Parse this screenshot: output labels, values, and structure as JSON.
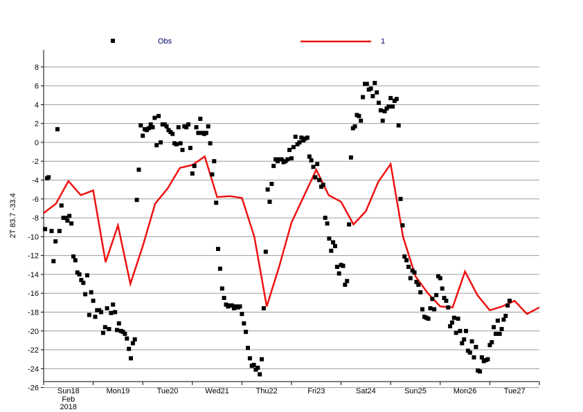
{
  "chart_data": {
    "type": "scatter+line",
    "ylabel": "2T 83.7 -33.4",
    "ylim": [
      -27,
      8.5
    ],
    "yticks": [
      -26,
      -24,
      -22,
      -20,
      -18,
      -16,
      -14,
      -12,
      -10,
      -8,
      -6,
      -4,
      -2,
      0,
      2,
      4,
      6,
      8
    ],
    "xlim": [
      0,
      10
    ],
    "grid": "horizontal",
    "legend_placement": "top",
    "x_ticks": [
      {
        "label": "Sun18",
        "x": 0.5,
        "color": "#cc0000",
        "sub": [
          "Feb",
          "2018"
        ]
      },
      {
        "label": "Mon19",
        "x": 1.5,
        "color": "#000000"
      },
      {
        "label": "Tue20",
        "x": 2.5,
        "color": "#000000"
      },
      {
        "label": "Wed21",
        "x": 3.5,
        "color": "#000000"
      },
      {
        "label": "Thu22",
        "x": 4.5,
        "color": "#000000"
      },
      {
        "label": "Fri23",
        "x": 5.5,
        "color": "#000000"
      },
      {
        "label": "Sat24",
        "x": 6.5,
        "color": "#000000"
      },
      {
        "label": "Sun25",
        "x": 7.5,
        "color": "#cc0000"
      },
      {
        "label": "Mon26",
        "x": 8.5,
        "color": "#000000"
      },
      {
        "label": "Tue27",
        "x": 9.5,
        "color": "#000000"
      }
    ],
    "series": [
      {
        "name": "Obs",
        "kind": "scatter",
        "color": "#000000",
        "label_color": "#000066",
        "points": [
          [
            0.03,
            -9.2
          ],
          [
            0.07,
            -3.8
          ],
          [
            0.1,
            -3.7
          ],
          [
            0.16,
            -9.4
          ],
          [
            0.2,
            -12.6
          ],
          [
            0.24,
            -10.5
          ],
          [
            0.28,
            1.4
          ],
          [
            0.32,
            -9.4
          ],
          [
            0.36,
            -6.7
          ],
          [
            0.4,
            -8.0
          ],
          [
            0.44,
            -8.0
          ],
          [
            0.48,
            -8.3
          ],
          [
            0.52,
            -7.8
          ],
          [
            0.56,
            -8.6
          ],
          [
            0.6,
            -12.1
          ],
          [
            0.64,
            -12.5
          ],
          [
            0.68,
            -13.8
          ],
          [
            0.72,
            -14.0
          ],
          [
            0.76,
            -14.6
          ],
          [
            0.8,
            -14.9
          ],
          [
            0.84,
            -16.1
          ],
          [
            0.88,
            -14.1
          ],
          [
            0.92,
            -18.3
          ],
          [
            0.96,
            -15.9
          ],
          [
            1.0,
            -16.8
          ],
          [
            1.04,
            -18.5
          ],
          [
            1.08,
            -17.8
          ],
          [
            1.12,
            -17.8
          ],
          [
            1.16,
            -18.0
          ],
          [
            1.2,
            -20.2
          ],
          [
            1.24,
            -19.6
          ],
          [
            1.28,
            -17.6
          ],
          [
            1.32,
            -19.8
          ],
          [
            1.36,
            -18.1
          ],
          [
            1.4,
            -17.2
          ],
          [
            1.44,
            -18.0
          ],
          [
            1.48,
            -19.9
          ],
          [
            1.52,
            -19.2
          ],
          [
            1.56,
            -20.0
          ],
          [
            1.6,
            -20.1
          ],
          [
            1.64,
            -20.3
          ],
          [
            1.68,
            -20.8
          ],
          [
            1.72,
            -21.9
          ],
          [
            1.76,
            -22.9
          ],
          [
            1.8,
            -21.3
          ],
          [
            1.84,
            -20.9
          ],
          [
            1.88,
            -6.1
          ],
          [
            1.92,
            -2.9
          ],
          [
            1.96,
            1.8
          ],
          [
            2.0,
            0.7
          ],
          [
            2.04,
            1.4
          ],
          [
            2.08,
            1.3
          ],
          [
            2.12,
            1.5
          ],
          [
            2.16,
            1.9
          ],
          [
            2.2,
            1.6
          ],
          [
            2.24,
            2.6
          ],
          [
            2.28,
            -0.3
          ],
          [
            2.32,
            2.8
          ],
          [
            2.36,
            0.0
          ],
          [
            2.4,
            1.9
          ],
          [
            2.44,
            1.9
          ],
          [
            2.48,
            1.7
          ],
          [
            2.52,
            1.3
          ],
          [
            2.56,
            1.1
          ],
          [
            2.6,
            0.9
          ],
          [
            2.64,
            -0.1
          ],
          [
            2.68,
            -0.2
          ],
          [
            2.72,
            1.6
          ],
          [
            2.76,
            -0.1
          ],
          [
            2.8,
            -0.8
          ],
          [
            2.84,
            1.7
          ],
          [
            2.88,
            1.6
          ],
          [
            2.92,
            1.9
          ],
          [
            2.96,
            -0.6
          ],
          [
            3.0,
            -3.3
          ],
          [
            3.04,
            -2.5
          ],
          [
            3.08,
            1.6
          ],
          [
            3.12,
            1.0
          ],
          [
            3.16,
            2.5
          ],
          [
            3.2,
            1.0
          ],
          [
            3.24,
            0.9
          ],
          [
            3.28,
            1.0
          ],
          [
            3.32,
            1.7
          ],
          [
            3.36,
            -0.1
          ],
          [
            3.4,
            -3.4
          ],
          [
            3.44,
            -2.0
          ],
          [
            3.48,
            -6.4
          ],
          [
            3.52,
            -11.3
          ],
          [
            3.56,
            -13.4
          ],
          [
            3.6,
            -15.5
          ],
          [
            3.64,
            -16.5
          ],
          [
            3.68,
            -17.2
          ],
          [
            3.72,
            -17.4
          ],
          [
            3.76,
            -17.3
          ],
          [
            3.8,
            -17.3
          ],
          [
            3.84,
            -17.6
          ],
          [
            3.88,
            -17.4
          ],
          [
            3.92,
            -17.5
          ],
          [
            3.96,
            -17.4
          ],
          [
            4.0,
            -18.2
          ],
          [
            4.04,
            -19.2
          ],
          [
            4.08,
            -20.1
          ],
          [
            4.12,
            -21.8
          ],
          [
            4.16,
            -22.9
          ],
          [
            4.2,
            -23.7
          ],
          [
            4.24,
            -23.6
          ],
          [
            4.28,
            -24.1
          ],
          [
            4.32,
            -23.9
          ],
          [
            4.36,
            -24.6
          ],
          [
            4.4,
            -23.0
          ],
          [
            4.44,
            -17.6
          ],
          [
            4.48,
            -11.6
          ],
          [
            4.52,
            -5.0
          ],
          [
            4.56,
            -6.3
          ],
          [
            4.6,
            -4.4
          ],
          [
            4.64,
            -2.5
          ],
          [
            4.68,
            -1.8
          ],
          [
            4.72,
            -2.0
          ],
          [
            4.76,
            -1.8
          ],
          [
            4.8,
            -1.8
          ],
          [
            4.84,
            -2.1
          ],
          [
            4.88,
            -2.0
          ],
          [
            4.92,
            -1.8
          ],
          [
            4.96,
            -0.8
          ],
          [
            5.0,
            -1.7
          ],
          [
            5.04,
            -0.5
          ],
          [
            5.08,
            0.6
          ],
          [
            5.12,
            -0.2
          ],
          [
            5.16,
            0.0
          ],
          [
            5.2,
            0.5
          ],
          [
            5.24,
            0.2
          ],
          [
            5.28,
            0.4
          ],
          [
            5.32,
            0.5
          ],
          [
            5.36,
            -1.5
          ],
          [
            5.4,
            -1.9
          ],
          [
            5.44,
            -2.6
          ],
          [
            5.48,
            -3.7
          ],
          [
            5.52,
            -2.3
          ],
          [
            5.56,
            -4.0
          ],
          [
            5.6,
            -4.7
          ],
          [
            5.64,
            -4.5
          ],
          [
            5.68,
            -8.0
          ],
          [
            5.72,
            -8.6
          ],
          [
            5.76,
            -10.2
          ],
          [
            5.8,
            -11.5
          ],
          [
            5.84,
            -10.6
          ],
          [
            5.88,
            -11.0
          ],
          [
            5.92,
            -13.2
          ],
          [
            5.96,
            -13.9
          ],
          [
            6.0,
            -13.0
          ],
          [
            6.04,
            -13.1
          ],
          [
            6.08,
            -15.1
          ],
          [
            6.12,
            -14.7
          ],
          [
            6.16,
            -8.7
          ],
          [
            6.2,
            -1.6
          ],
          [
            6.24,
            1.5
          ],
          [
            6.28,
            1.7
          ],
          [
            6.32,
            2.9
          ],
          [
            6.36,
            2.8
          ],
          [
            6.4,
            2.3
          ],
          [
            6.44,
            4.8
          ],
          [
            6.48,
            6.2
          ],
          [
            6.52,
            6.2
          ],
          [
            6.56,
            5.6
          ],
          [
            6.6,
            5.7
          ],
          [
            6.64,
            4.9
          ],
          [
            6.68,
            6.3
          ],
          [
            6.72,
            5.3
          ],
          [
            6.76,
            4.2
          ],
          [
            6.8,
            3.4
          ],
          [
            6.84,
            2.3
          ],
          [
            6.88,
            3.3
          ],
          [
            6.92,
            3.6
          ],
          [
            6.96,
            3.8
          ],
          [
            7.0,
            4.7
          ],
          [
            7.04,
            3.8
          ],
          [
            7.08,
            4.4
          ],
          [
            7.12,
            4.6
          ],
          [
            7.16,
            1.8
          ],
          [
            7.2,
            -6.0
          ],
          [
            7.24,
            -8.8
          ],
          [
            7.28,
            -12.1
          ],
          [
            7.32,
            -12.5
          ],
          [
            7.36,
            -13.2
          ],
          [
            7.4,
            -14.4
          ],
          [
            7.44,
            -13.6
          ],
          [
            7.48,
            -13.8
          ],
          [
            7.52,
            -14.8
          ],
          [
            7.56,
            -15.1
          ],
          [
            7.6,
            -15.9
          ],
          [
            7.64,
            -17.7
          ],
          [
            7.68,
            -18.5
          ],
          [
            7.72,
            -18.6
          ],
          [
            7.76,
            -18.7
          ],
          [
            7.8,
            -17.6
          ],
          [
            7.84,
            -16.6
          ],
          [
            7.88,
            -17.7
          ],
          [
            7.92,
            -16.2
          ],
          [
            7.96,
            -14.2
          ],
          [
            8.0,
            -14.4
          ],
          [
            8.04,
            -15.5
          ],
          [
            8.08,
            -16.5
          ],
          [
            8.12,
            -16.8
          ],
          [
            8.16,
            -17.5
          ],
          [
            8.2,
            -19.5
          ],
          [
            8.24,
            -19.1
          ],
          [
            8.28,
            -18.6
          ],
          [
            8.32,
            -20.2
          ],
          [
            8.36,
            -18.7
          ],
          [
            8.4,
            -20.0
          ],
          [
            8.44,
            -21.3
          ],
          [
            8.48,
            -20.9
          ],
          [
            8.52,
            -20.0
          ],
          [
            8.56,
            -22.1
          ],
          [
            8.6,
            -22.3
          ],
          [
            8.64,
            -21.1
          ],
          [
            8.68,
            -22.8
          ],
          [
            8.72,
            -21.7
          ],
          [
            8.76,
            -24.2
          ],
          [
            8.8,
            -24.3
          ],
          [
            8.84,
            -22.8
          ],
          [
            8.88,
            -23.2
          ],
          [
            8.92,
            -23.1
          ],
          [
            8.96,
            -23.0
          ],
          [
            9.0,
            -21.5
          ],
          [
            9.04,
            -21.2
          ],
          [
            9.08,
            -19.6
          ],
          [
            9.12,
            -20.3
          ],
          [
            9.16,
            -18.9
          ],
          [
            9.2,
            -20.3
          ],
          [
            9.24,
            -19.8
          ],
          [
            9.28,
            -18.8
          ],
          [
            9.32,
            -18.4
          ],
          [
            9.36,
            -17.3
          ],
          [
            9.4,
            -16.8
          ]
        ]
      },
      {
        "name": "1",
        "kind": "line",
        "color": "#ee1111",
        "label_color": "#000066",
        "points": [
          [
            0.0,
            -7.5
          ],
          [
            0.25,
            -6.5
          ],
          [
            0.5,
            -4.1
          ],
          [
            0.75,
            -5.6
          ],
          [
            1.0,
            -5.1
          ],
          [
            1.25,
            -12.7
          ],
          [
            1.5,
            -8.8
          ],
          [
            1.75,
            -15.0
          ],
          [
            2.0,
            -11.0
          ],
          [
            2.25,
            -6.5
          ],
          [
            2.5,
            -4.9
          ],
          [
            2.75,
            -2.7
          ],
          [
            3.0,
            -2.4
          ],
          [
            3.25,
            -1.5
          ],
          [
            3.5,
            -5.8
          ],
          [
            3.75,
            -5.7
          ],
          [
            4.0,
            -5.9
          ],
          [
            4.25,
            -10.0
          ],
          [
            4.5,
            -17.4
          ],
          [
            4.75,
            -13.2
          ],
          [
            5.0,
            -8.5
          ],
          [
            5.25,
            -5.7
          ],
          [
            5.5,
            -2.9
          ],
          [
            5.75,
            -5.6
          ],
          [
            6.0,
            -6.3
          ],
          [
            6.25,
            -8.7
          ],
          [
            6.5,
            -7.3
          ],
          [
            6.75,
            -4.2
          ],
          [
            7.0,
            -2.3
          ],
          [
            7.25,
            -10.0
          ],
          [
            7.5,
            -14.2
          ],
          [
            7.75,
            -16.0
          ],
          [
            8.0,
            -17.4
          ],
          [
            8.25,
            -17.5
          ],
          [
            8.5,
            -13.7
          ],
          [
            8.75,
            -16.2
          ],
          [
            9.0,
            -17.8
          ],
          [
            9.25,
            -17.4
          ],
          [
            9.5,
            -16.8
          ],
          [
            9.75,
            -18.2
          ],
          [
            10.0,
            -17.5
          ]
        ]
      }
    ]
  }
}
